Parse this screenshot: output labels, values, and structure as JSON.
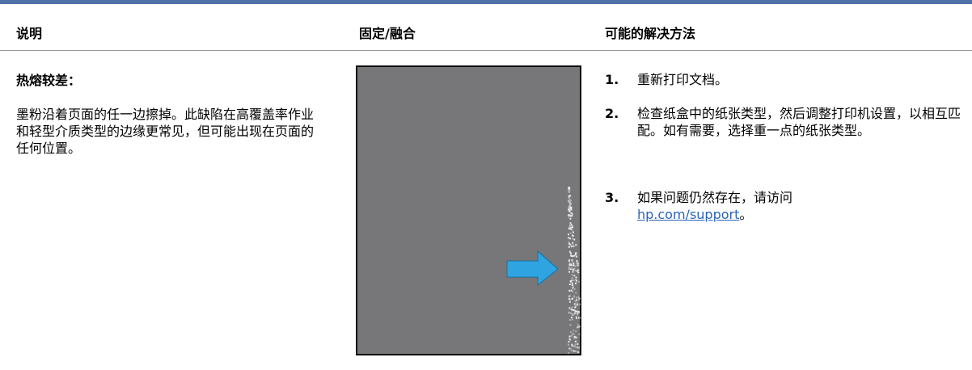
{
  "table": {
    "header": [
      "说明",
      "固定/融合",
      "可能的解决方法"
    ],
    "row": {
      "title": "热熔较差：",
      "description": "墨粉沿着页面的任一边擦掉。此缺陷在高覆盖率作业和轻型介质类型的边缘更常见，但可能出现在页面的任何位置。",
      "steps": [
        {
          "number": "1.",
          "text": "重新打印文档。"
        },
        {
          "number": "2.",
          "text": "检查纸盒中的纸张类型，然后调整打印机设置，以相互匹配。如有需要，选择重一点的纸张类型。"
        },
        {
          "number": "3.",
          "text": "如果问题仍然存在，请访问 ",
          "link": "hp.com/support",
          "after": "。"
        }
      ]
    }
  }
}
